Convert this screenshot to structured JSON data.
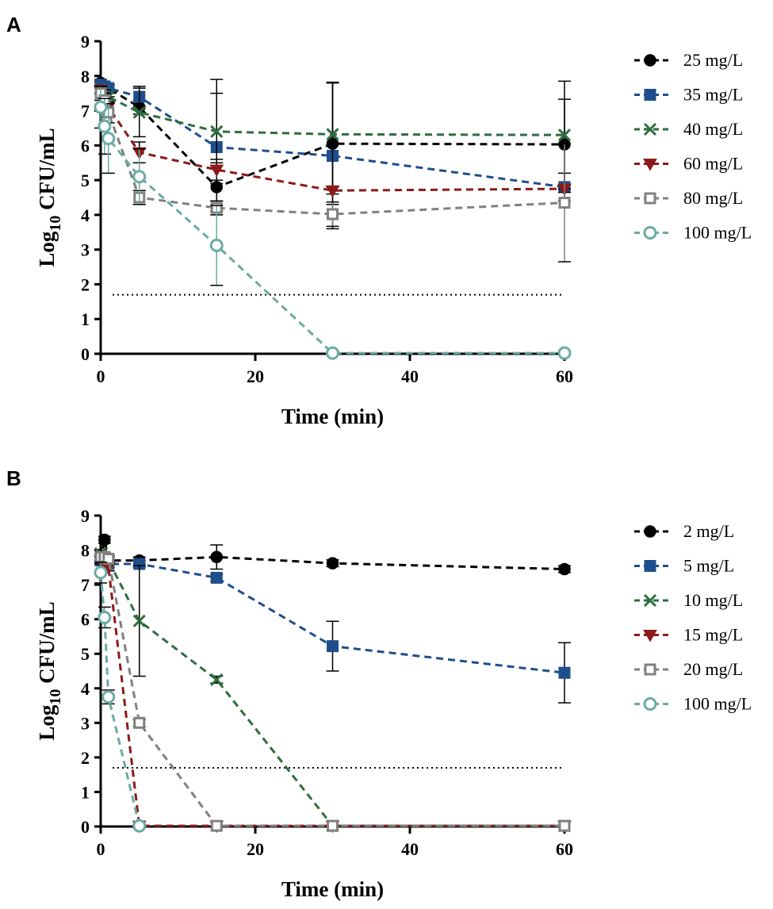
{
  "chart_data": [
    {
      "panel": "A",
      "type": "line",
      "xlabel": "Time (min)",
      "ylabel_main": "Log",
      "ylabel_sub": "10",
      "ylabel_rest": " CFU/mL",
      "xlim": [
        0,
        60
      ],
      "ylim": [
        0,
        9
      ],
      "xticks": [
        0,
        20,
        40,
        60
      ],
      "yticks": [
        0,
        1,
        2,
        3,
        4,
        5,
        6,
        7,
        8,
        9
      ],
      "detection_limit": 1.7,
      "series": [
        {
          "name": "25 mg/L",
          "color": "#000000",
          "marker": "circle",
          "x": [
            0,
            0.5,
            1,
            5,
            15,
            30,
            60
          ],
          "y": [
            7.8,
            7.7,
            7.65,
            7.1,
            4.8,
            6.05,
            6.03
          ],
          "err": [
            0.1,
            0.1,
            0.1,
            0.2,
            0.7,
            1.75,
            1.3
          ]
        },
        {
          "name": "35 mg/L",
          "color": "#1f4e8c",
          "marker": "square",
          "x": [
            0,
            0.5,
            1,
            5,
            15,
            30,
            60
          ],
          "y": [
            7.75,
            7.7,
            7.65,
            7.4,
            5.95,
            5.7,
            4.8
          ],
          "err": [
            0.1,
            0.1,
            0.1,
            0.3,
            1.55,
            2.1,
            0.4
          ]
        },
        {
          "name": "40 mg/L",
          "color": "#2e6e3e",
          "marker": "x",
          "x": [
            0,
            0.5,
            1,
            5,
            15,
            30,
            60
          ],
          "y": [
            7.6,
            7.5,
            7.4,
            6.95,
            6.4,
            6.32,
            6.3
          ],
          "err": [
            0.1,
            0.1,
            0.1,
            0.7,
            1.5,
            1.5,
            1.55
          ]
        },
        {
          "name": "60 mg/L",
          "color": "#8b1a1a",
          "marker": "triangle-down",
          "x": [
            0,
            0.5,
            1,
            5,
            15,
            30,
            60
          ],
          "y": [
            7.6,
            7.3,
            7.1,
            5.8,
            5.3,
            4.7,
            4.75
          ],
          "err": [
            0.1,
            0.2,
            0.3,
            0.3,
            0.3,
            0.1,
            0.1
          ]
        },
        {
          "name": "80 mg/L",
          "color": "#808080",
          "marker": "square-open",
          "x": [
            0,
            0.5,
            1,
            5,
            15,
            30,
            60
          ],
          "y": [
            7.5,
            7.3,
            6.95,
            4.5,
            4.2,
            4.02,
            4.35
          ],
          "err": [
            0.2,
            0.3,
            0.3,
            0.2,
            0.2,
            0.35,
            1.7
          ]
        },
        {
          "name": "100 mg/L",
          "color": "#6aaba3",
          "marker": "circle-open",
          "x": [
            0,
            0.5,
            1,
            5,
            15,
            30,
            60
          ],
          "y": [
            7.1,
            6.55,
            6.2,
            5.1,
            3.12,
            0.02,
            0.02
          ],
          "err": [
            0.6,
            0.8,
            1.0,
            0.8,
            1.15,
            0,
            0
          ]
        }
      ]
    },
    {
      "panel": "B",
      "type": "line",
      "xlabel": "Time (min)",
      "ylabel_main": "Log",
      "ylabel_sub": "10",
      "ylabel_rest": " CFU/mL",
      "xlim": [
        0,
        60
      ],
      "ylim": [
        0,
        9
      ],
      "xticks": [
        0,
        20,
        40,
        60
      ],
      "yticks": [
        0,
        1,
        2,
        3,
        4,
        5,
        6,
        7,
        8,
        9
      ],
      "detection_limit": 1.7,
      "series": [
        {
          "name": "2 mg/L",
          "color": "#000000",
          "marker": "circle",
          "x": [
            0,
            0.5,
            1,
            5,
            15,
            30,
            60
          ],
          "y": [
            7.7,
            8.3,
            7.7,
            7.7,
            7.8,
            7.62,
            7.45
          ],
          "err": [
            0.1,
            0.1,
            0.1,
            0.1,
            0.35,
            0.1,
            0.1
          ]
        },
        {
          "name": "5 mg/L",
          "color": "#1f4e8c",
          "marker": "square",
          "x": [
            0,
            0.5,
            1,
            5,
            15,
            30,
            60
          ],
          "y": [
            7.7,
            7.65,
            7.6,
            7.6,
            7.2,
            5.22,
            4.45
          ],
          "err": [
            0.1,
            0.1,
            0.1,
            0.1,
            0.1,
            0.72,
            0.87
          ]
        },
        {
          "name": "10 mg/L",
          "color": "#2e6e3e",
          "marker": "x",
          "x": [
            0,
            0.5,
            1,
            5,
            15,
            30,
            60
          ],
          "y": [
            7.9,
            7.8,
            7.7,
            5.95,
            4.25,
            0.02,
            0.02
          ],
          "err": [
            0.1,
            0.1,
            0.1,
            1.6,
            0.1,
            0,
            0
          ]
        },
        {
          "name": "15 mg/L",
          "color": "#8b1a1a",
          "marker": "triangle-down",
          "x": [
            0,
            0.5,
            1,
            5,
            15,
            30,
            60
          ],
          "y": [
            7.7,
            7.6,
            7.5,
            0.02,
            0.02,
            0.02,
            0.02
          ],
          "err": [
            0.1,
            0.1,
            0.1,
            0,
            0,
            0,
            0
          ]
        },
        {
          "name": "20 mg/L",
          "color": "#808080",
          "marker": "square-open",
          "x": [
            0,
            0.5,
            1,
            5,
            15,
            30,
            60
          ],
          "y": [
            7.8,
            7.8,
            7.75,
            3.0,
            0.02,
            0.02,
            0.02
          ],
          "err": [
            0.1,
            0.1,
            0.1,
            0.1,
            0,
            0,
            0
          ]
        },
        {
          "name": "100 mg/L",
          "color": "#6aaba3",
          "marker": "circle-open",
          "x": [
            0,
            0.5,
            1,
            5
          ],
          "y": [
            7.35,
            6.05,
            3.75,
            0.02
          ],
          "err": [
            0.3,
            0.3,
            0.2,
            0
          ]
        }
      ]
    }
  ]
}
